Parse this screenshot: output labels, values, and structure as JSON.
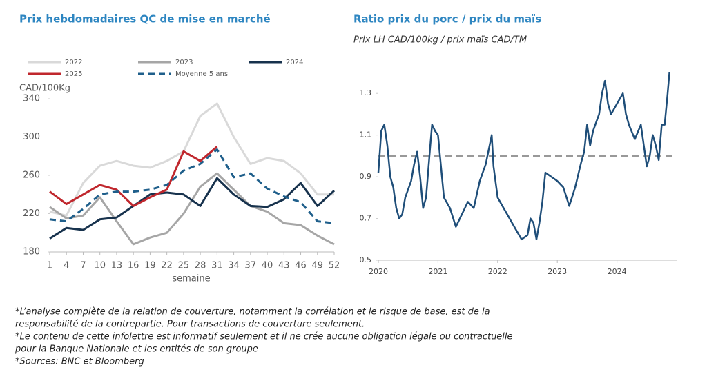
{
  "chart_data": [
    {
      "type": "line",
      "title": "Prix hebdomadaires QC de mise en marché",
      "y_label": "CAD/100Kg",
      "x_label": "semaine",
      "x": [
        1,
        4,
        7,
        10,
        13,
        16,
        19,
        22,
        25,
        28,
        31,
        34,
        37,
        40,
        43,
        46,
        49,
        52
      ],
      "xlim": [
        1,
        52
      ],
      "xticks": [
        1,
        4,
        7,
        10,
        13,
        16,
        19,
        22,
        25,
        28,
        31,
        34,
        37,
        40,
        43,
        46,
        49,
        52
      ],
      "ylim": [
        180,
        340
      ],
      "yticks": [
        180,
        220,
        260,
        300,
        340
      ],
      "series": [
        {
          "name": "2022",
          "color": "#d9d9d9",
          "style": "solid",
          "values": [
            222,
            218,
            252,
            270,
            275,
            270,
            268,
            275,
            285,
            322,
            335,
            300,
            272,
            278,
            275,
            262,
            240,
            240
          ]
        },
        {
          "name": "2023",
          "color": "#a6a6a6",
          "style": "solid",
          "values": [
            227,
            215,
            218,
            237,
            212,
            188,
            195,
            200,
            220,
            248,
            262,
            245,
            228,
            222,
            210,
            208,
            197,
            188
          ]
        },
        {
          "name": "2024",
          "color": "#17324d",
          "style": "solid",
          "values": [
            194,
            205,
            203,
            214,
            216,
            228,
            240,
            242,
            240,
            228,
            257,
            240,
            228,
            227,
            235,
            252,
            228,
            244
          ]
        },
        {
          "name": "2025",
          "color": "#c0272d",
          "style": "solid",
          "values": [
            243,
            230,
            240,
            250,
            245,
            228,
            237,
            245,
            285,
            275,
            290,
            null,
            null,
            null,
            null,
            null,
            null,
            null
          ]
        },
        {
          "name": "Moyenne 5 ans",
          "color": "#1f5f8b",
          "style": "dashed",
          "values": [
            214,
            212,
            225,
            240,
            243,
            243,
            245,
            250,
            265,
            272,
            287,
            258,
            262,
            246,
            238,
            232,
            212,
            210
          ]
        }
      ]
    },
    {
      "type": "line",
      "title": "Ratio prix du porc / prix du maïs",
      "subtitle": "Prix LH CAD/100kg / prix maïs CAD/TM",
      "x": [
        2020.0,
        2020.05,
        2020.1,
        2020.15,
        2020.2,
        2020.25,
        2020.3,
        2020.35,
        2020.4,
        2020.45,
        2020.55,
        2020.6,
        2020.65,
        2020.7,
        2020.75,
        2020.8,
        2020.87,
        2020.9,
        2020.95,
        2021.0,
        2021.05,
        2021.1,
        2021.2,
        2021.3,
        2021.4,
        2021.5,
        2021.6,
        2021.7,
        2021.8,
        2021.9,
        2021.93,
        2022.0,
        2022.1,
        2022.2,
        2022.3,
        2022.4,
        2022.5,
        2022.55,
        2022.6,
        2022.65,
        2022.7,
        2022.75,
        2022.8,
        2022.9,
        2023.0,
        2023.1,
        2023.2,
        2023.3,
        2023.4,
        2023.45,
        2023.5,
        2023.55,
        2023.6,
        2023.7,
        2023.75,
        2023.8,
        2023.85,
        2023.9,
        2024.0,
        2024.1,
        2024.15,
        2024.2,
        2024.3,
        2024.4,
        2024.45,
        2024.5,
        2024.55,
        2024.6,
        2024.65,
        2024.7,
        2024.75,
        2024.8,
        2024.85,
        2024.88
      ],
      "xlim": [
        2020,
        2025
      ],
      "xticks": [
        2020,
        2021,
        2022,
        2023,
        2024
      ],
      "ylim": [
        0.5,
        1.4
      ],
      "yticks": [
        0.5,
        0.7,
        0.9,
        1.1,
        1.3
      ],
      "reference_line": 1.0,
      "reference_color": "#999999",
      "series": [
        {
          "color": "#1f4e79",
          "style": "solid",
          "values": [
            0.92,
            1.12,
            1.15,
            1.05,
            0.9,
            0.85,
            0.75,
            0.7,
            0.72,
            0.8,
            0.88,
            0.96,
            1.02,
            0.9,
            0.75,
            0.8,
            1.05,
            1.15,
            1.12,
            1.1,
            0.95,
            0.8,
            0.75,
            0.66,
            0.72,
            0.78,
            0.75,
            0.88,
            0.96,
            1.1,
            0.95,
            0.8,
            0.75,
            0.7,
            0.65,
            0.6,
            0.62,
            0.7,
            0.68,
            0.6,
            0.68,
            0.78,
            0.92,
            0.9,
            0.88,
            0.85,
            0.76,
            0.85,
            0.97,
            1.02,
            1.15,
            1.05,
            1.12,
            1.2,
            1.3,
            1.36,
            1.25,
            1.2,
            1.25,
            1.3,
            1.2,
            1.15,
            1.08,
            1.15,
            1.05,
            0.95,
            1.0,
            1.1,
            1.05,
            0.98,
            1.15,
            1.15,
            1.3,
            1.4
          ]
        }
      ]
    }
  ],
  "notes": [
    "*L’analyse complète de la relation de couverture, notamment la corrélation et le risque de base, est de la",
    "responsabilité de la contrepartie. Pour transactions de couverture seulement.",
    "*Le contenu de cette infolettre est informatif seulement et il ne crée aucune obligation légale ou contractuelle",
    "pour la Banque Nationale et les entités de son groupe",
    "*Sources: BNC et Bloomberg"
  ]
}
